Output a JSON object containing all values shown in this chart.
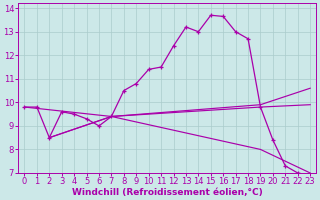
{
  "background_color": "#cce8e8",
  "grid_color": "#aacccc",
  "line_color": "#aa00aa",
  "xlim": [
    -0.5,
    23.5
  ],
  "ylim": [
    7,
    14.2
  ],
  "xlabel": "Windchill (Refroidissement éolien,°C)",
  "xlabel_fontsize": 6.5,
  "xticks": [
    0,
    1,
    2,
    3,
    4,
    5,
    6,
    7,
    8,
    9,
    10,
    11,
    12,
    13,
    14,
    15,
    16,
    17,
    18,
    19,
    20,
    21,
    22,
    23
  ],
  "yticks": [
    7,
    8,
    9,
    10,
    11,
    12,
    13,
    14
  ],
  "tick_fontsize": 6.0,
  "main_x": [
    0,
    1,
    2,
    3,
    4,
    5,
    6,
    7,
    8,
    9,
    10,
    11,
    12,
    13,
    14,
    15,
    16,
    17,
    18,
    19,
    20,
    21,
    22,
    23
  ],
  "main_y": [
    9.8,
    9.8,
    8.5,
    9.6,
    9.5,
    9.3,
    9.0,
    9.4,
    10.5,
    10.8,
    11.4,
    11.5,
    12.4,
    13.2,
    13.0,
    13.7,
    13.65,
    13.0,
    12.7,
    9.8,
    8.4,
    7.3,
    7.0,
    6.9
  ],
  "trend1_x": [
    0,
    7,
    19,
    23
  ],
  "trend1_y": [
    9.8,
    9.4,
    9.9,
    10.6
  ],
  "trend2_x": [
    2,
    7,
    19,
    23
  ],
  "trend2_y": [
    8.5,
    9.4,
    9.8,
    9.9
  ],
  "trend3_x": [
    2,
    7,
    19,
    23
  ],
  "trend3_y": [
    8.5,
    9.4,
    8.0,
    7.0
  ]
}
